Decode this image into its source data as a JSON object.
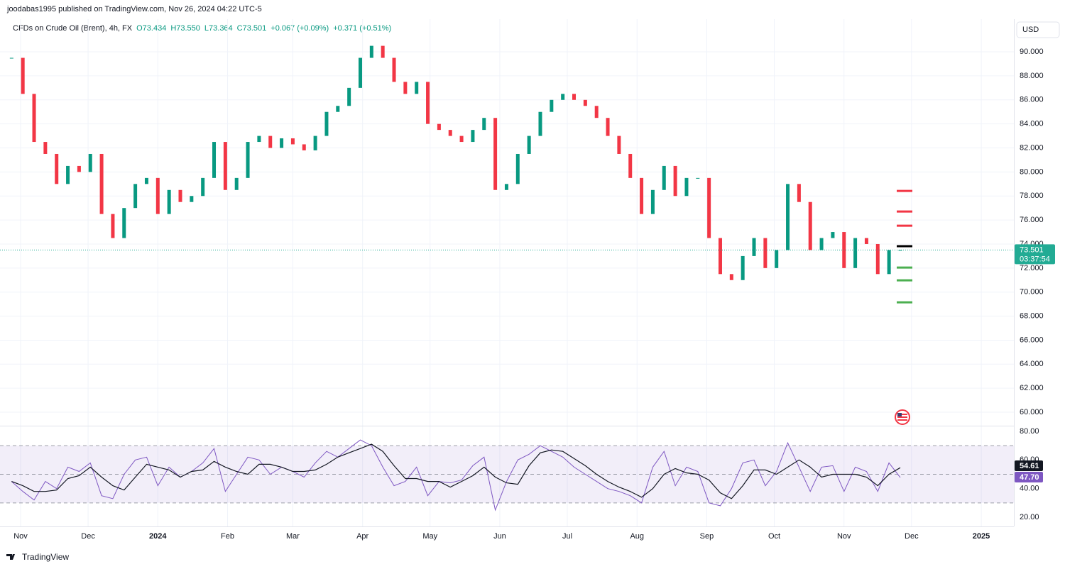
{
  "header": {
    "publisher": "joodabas1995 published on TradingView.com, Nov 26, 2024 04:22 UTC-5"
  },
  "footer": {
    "brand": "TradingView"
  },
  "chart_data": [
    {
      "type": "candle",
      "title": "CFDs on Crude Oil (Brent), 4h, FX",
      "ohlc": [
        "O73.434",
        "H73.550",
        "L73.364",
        "C73.501"
      ],
      "changes": [
        "+0.067 (+0.09%)",
        "+0.371 (+0.51%)"
      ],
      "currency": "USD",
      "x": [
        2,
        7,
        12,
        17,
        22,
        27,
        32,
        37,
        42,
        47,
        52,
        57,
        62,
        67,
        72,
        77,
        82,
        87,
        92,
        97,
        102,
        107,
        112,
        117,
        122,
        127,
        132,
        137,
        142,
        147,
        152,
        157,
        162,
        167,
        172,
        177,
        182,
        187,
        192,
        197,
        202,
        207,
        212,
        217,
        222,
        227,
        232,
        237,
        242,
        247,
        252,
        257,
        262,
        267,
        272,
        277,
        282,
        287,
        292,
        297,
        302,
        307,
        312,
        317,
        322,
        327,
        332,
        337,
        342,
        347,
        352,
        357,
        362,
        367,
        372,
        377,
        382,
        387,
        392,
        397
      ],
      "values": [
        89.5,
        86.5,
        82.5,
        81.5,
        79,
        80.5,
        80,
        81.5,
        76.5,
        74.5,
        77,
        79,
        79.5,
        76.5,
        78.5,
        77.5,
        78,
        79.5,
        82.5,
        78.5,
        79.5,
        82.5,
        83,
        82,
        82.8,
        82.3,
        81.8,
        83,
        85,
        85.5,
        87,
        89.5,
        90.5,
        89.5,
        87.5,
        86.5,
        87.5,
        84,
        83.5,
        83,
        82.5,
        83.5,
        84.5,
        78.5,
        79,
        81.5,
        83,
        85,
        86,
        86.5,
        86,
        85.5,
        84.5,
        83,
        81.5,
        79.5,
        76.5,
        78.5,
        80.5,
        78,
        79.5,
        79.5,
        74.5,
        71.5,
        71,
        73,
        74.5,
        72,
        73.5,
        79,
        77.5,
        73.5,
        74.5,
        75,
        72,
        74.5,
        74,
        71.5,
        73.5,
        73.501
      ],
      "up_color": "#089981",
      "down_color": "#f23645",
      "xlim": [
        0,
        447.5
      ],
      "xticks": [
        {
          "value": 6,
          "label": "Nov"
        },
        {
          "value": 36,
          "label": "Dec"
        },
        {
          "value": 67,
          "label": "2024"
        },
        {
          "value": 98,
          "label": "Feb"
        },
        {
          "value": 127,
          "label": "Mar"
        },
        {
          "value": 158,
          "label": "Apr"
        },
        {
          "value": 188,
          "label": "May"
        },
        {
          "value": 219,
          "label": "Jun"
        },
        {
          "value": 249,
          "label": "Jul"
        },
        {
          "value": 280,
          "label": "Aug"
        },
        {
          "value": 311,
          "label": "Sep"
        },
        {
          "value": 341,
          "label": "Oct"
        },
        {
          "value": 372,
          "label": "Nov"
        },
        {
          "value": 402,
          "label": "Dec"
        },
        {
          "value": 433,
          "label": "2025"
        }
      ],
      "ylim": [
        58.88,
        92.72
      ],
      "yticks": [
        {
          "value": 60,
          "label": "60.000"
        },
        {
          "value": 62,
          "label": "62.000"
        },
        {
          "value": 64,
          "label": "64.000"
        },
        {
          "value": 66,
          "label": "66.000"
        },
        {
          "value": 68,
          "label": "68.000"
        },
        {
          "value": 70,
          "label": "70.000"
        },
        {
          "value": 72,
          "label": "72.000"
        },
        {
          "value": 74,
          "label": "74.000"
        },
        {
          "value": 76,
          "label": "76.000"
        },
        {
          "value": 78,
          "label": "78.000"
        },
        {
          "value": 80,
          "label": "80.000"
        },
        {
          "value": 82,
          "label": "82.000"
        },
        {
          "value": 84,
          "label": "84.000"
        },
        {
          "value": 86,
          "label": "86.000"
        },
        {
          "value": 88,
          "label": "88.000"
        },
        {
          "value": 90,
          "label": "90.000"
        }
      ],
      "grid": true,
      "levels": [
        {
          "value": 78.42,
          "color": "#f23645"
        },
        {
          "value": 76.71,
          "color": "#f23645"
        },
        {
          "value": 75.53,
          "color": "#f23645"
        },
        {
          "value": 73.82,
          "color": "#000000"
        },
        {
          "value": 72.04,
          "color": "#4caf50"
        },
        {
          "value": 70.98,
          "color": "#4caf50"
        },
        {
          "value": 69.15,
          "color": "#4caf50"
        }
      ],
      "last_price": 73.501,
      "countdown": "03:37:54",
      "last_color": "#22ab94"
    },
    {
      "type": "line",
      "series": [
        {
          "color": "#7e57c2",
          "last_label": "47.70",
          "values": [
            45,
            38,
            32,
            45,
            40,
            55,
            52,
            58,
            35,
            33,
            50,
            60,
            62,
            42,
            55,
            48,
            52,
            58,
            68,
            38,
            50,
            62,
            60,
            50,
            55,
            52,
            48,
            58,
            66,
            62,
            68,
            74,
            70,
            55,
            42,
            45,
            55,
            35,
            45,
            44,
            46,
            56,
            62,
            25,
            45,
            60,
            64,
            70,
            66,
            62,
            55,
            50,
            45,
            40,
            38,
            35,
            30,
            55,
            66,
            42,
            55,
            52,
            30,
            28,
            40,
            58,
            60,
            42,
            52,
            72,
            55,
            38,
            55,
            56,
            38,
            55,
            52,
            38,
            58,
            47.7
          ]
        },
        {
          "color": "#131722",
          "last_label": "54.61",
          "values": [
            45,
            42,
            38,
            38,
            39,
            47,
            49,
            55,
            48,
            42,
            39,
            48,
            57,
            55,
            53,
            48,
            52,
            53,
            59,
            55,
            52,
            50,
            57,
            57,
            55,
            52,
            52,
            53,
            57,
            62,
            65,
            68,
            71,
            66,
            56,
            47,
            47,
            45,
            45,
            41,
            45,
            49,
            55,
            48,
            44,
            43,
            56,
            65,
            67,
            66,
            61,
            56,
            50,
            45,
            41,
            38,
            34,
            40,
            50,
            54,
            51,
            50,
            46,
            37,
            33,
            42,
            53,
            53,
            50,
            55,
            60,
            55,
            48,
            50,
            50,
            50,
            48,
            42,
            50,
            54.61
          ]
        }
      ],
      "band": [
        30,
        70
      ],
      "mid": 50,
      "ylim": [
        13.55,
        83.47
      ],
      "yticks": [
        {
          "value": 20,
          "label": "20.00"
        },
        {
          "value": 40,
          "label": "40.00"
        },
        {
          "value": 60,
          "label": "60.00"
        },
        {
          "value": 80,
          "label": "80.00"
        }
      ]
    }
  ]
}
